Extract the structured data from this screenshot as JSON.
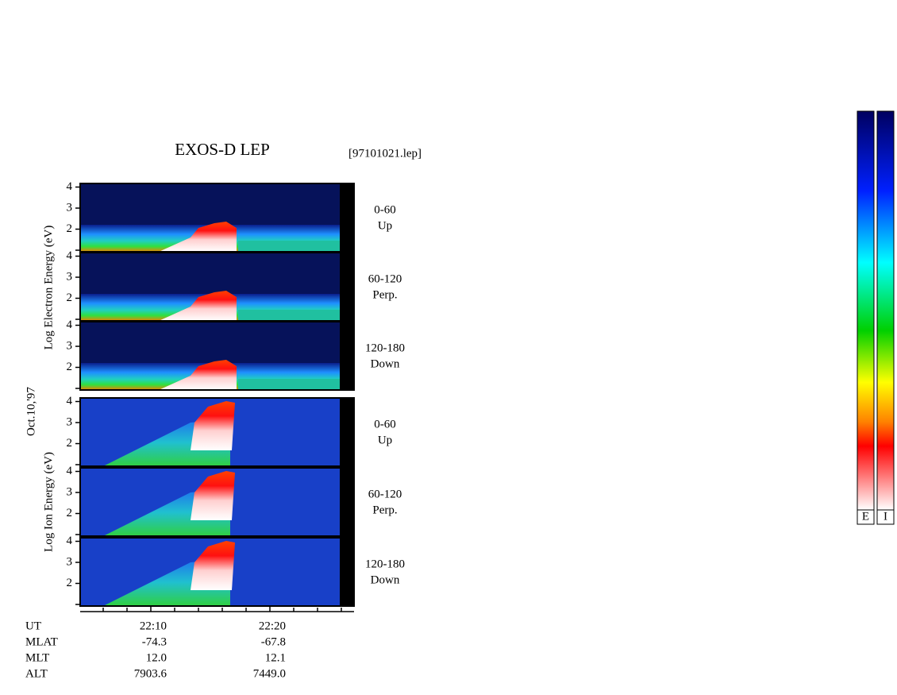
{
  "header": {
    "title": "EXOS-D LEP",
    "file": "[97101021.lep]"
  },
  "date": "Oct.10,'97",
  "yticks": [
    2,
    3,
    4
  ],
  "groups": [
    {
      "axis_label": "Log Electron Energy (eV)",
      "panels": [
        {
          "range": "0-60",
          "direction": "Up"
        },
        {
          "range": "60-120",
          "direction": "Perp."
        },
        {
          "range": "120-180",
          "direction": "Down"
        }
      ]
    },
    {
      "axis_label": "Log Ion Energy (eV)",
      "panels": [
        {
          "range": "0-60",
          "direction": "Up"
        },
        {
          "range": "60-120",
          "direction": "Perp."
        },
        {
          "range": "120-180",
          "direction": "Down"
        }
      ]
    }
  ],
  "ephemeris": [
    [
      "UT",
      "22:10",
      "22:20"
    ],
    [
      "MLAT",
      "-74.3",
      "-67.8"
    ],
    [
      "MLT",
      "12.0",
      "12.1"
    ],
    [
      "ALT",
      "7903.6",
      "7449.0"
    ]
  ],
  "colorbars": [
    "E",
    "I"
  ]
}
